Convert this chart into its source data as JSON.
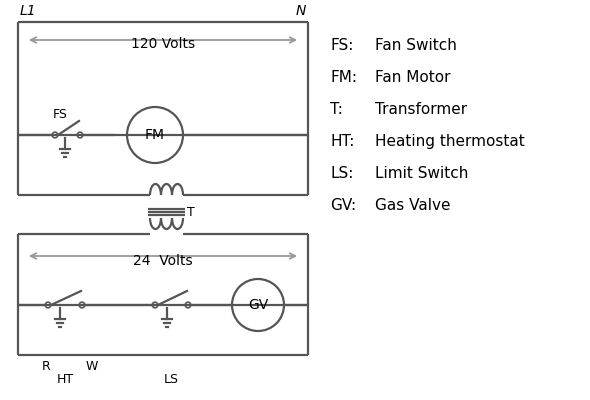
{
  "bg_color": "#ffffff",
  "line_color": "#555555",
  "text_color": "#000000",
  "line_width": 1.6,
  "legend": [
    [
      "FS:",
      "Fan Switch"
    ],
    [
      "FM:",
      "Fan Motor"
    ],
    [
      "T:",
      "Transformer"
    ],
    [
      "HT:",
      "Heating thermostat"
    ],
    [
      "LS:",
      "Limit Switch"
    ],
    [
      "GV:",
      "Gas Valve"
    ]
  ],
  "L1_label": "L1",
  "N_label": "N",
  "volts120_label": "120 Volts",
  "volts24_label": "24  Volts",
  "T_label": "T",
  "FS_label": "FS",
  "FM_label": "FM",
  "R_label": "R",
  "W_label": "W",
  "HT_label": "HT",
  "LS_label": "LS",
  "GV_label": "GV"
}
